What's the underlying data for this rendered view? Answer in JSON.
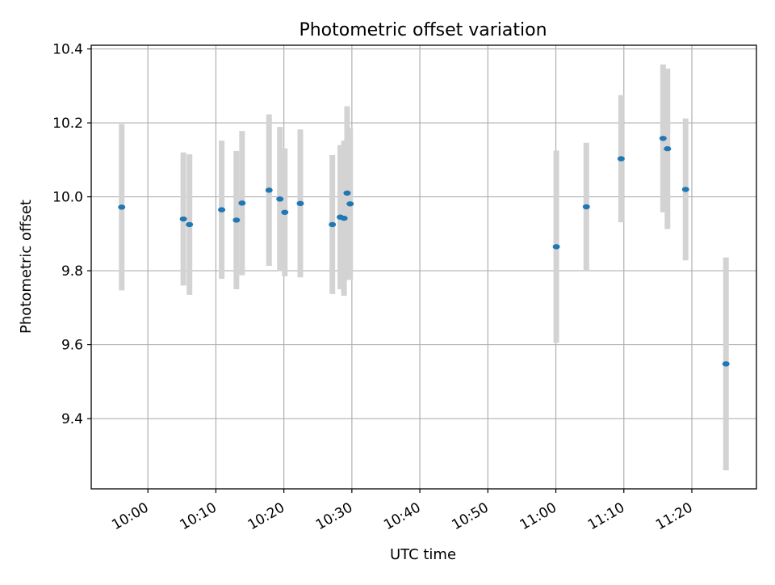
{
  "chart_data": {
    "type": "scatter",
    "title": "Photometric offset variation",
    "xlabel": "UTC time",
    "ylabel": "Photometric offset",
    "grid": true,
    "x_range": [
      "09:51:40",
      "11:29:30"
    ],
    "ylim": [
      9.21,
      10.41
    ],
    "x_ticks": [
      "10:00",
      "10:10",
      "10:20",
      "10:30",
      "10:40",
      "10:50",
      "11:00",
      "11:10",
      "11:20"
    ],
    "y_ticks": [
      "9.4",
      "9.6",
      "9.8",
      "10.0",
      "10.2",
      "10.4"
    ],
    "colors": {
      "point": "#1f77b4",
      "errorbar": "#d3d3d3",
      "grid": "#b0b0b0"
    },
    "points": [
      {
        "x": "09:56:09",
        "y": 9.972,
        "err": 0.225
      },
      {
        "x": "10:05:13",
        "y": 9.94,
        "err": 0.18
      },
      {
        "x": "10:06:07",
        "y": 9.925,
        "err": 0.19
      },
      {
        "x": "10:10:51",
        "y": 9.965,
        "err": 0.187
      },
      {
        "x": "10:13:01",
        "y": 9.937,
        "err": 0.187
      },
      {
        "x": "10:13:51",
        "y": 9.983,
        "err": 0.195
      },
      {
        "x": "10:17:49",
        "y": 10.018,
        "err": 0.205
      },
      {
        "x": "10:19:25",
        "y": 9.994,
        "err": 0.195
      },
      {
        "x": "10:20:08",
        "y": 9.958,
        "err": 0.173
      },
      {
        "x": "10:22:25",
        "y": 9.982,
        "err": 0.2
      },
      {
        "x": "10:27:08",
        "y": 9.925,
        "err": 0.188
      },
      {
        "x": "10:28:18",
        "y": 9.945,
        "err": 0.195
      },
      {
        "x": "10:28:51",
        "y": 9.942,
        "err": 0.21
      },
      {
        "x": "10:29:18",
        "y": 10.01,
        "err": 0.235
      },
      {
        "x": "10:29:45",
        "y": 9.981,
        "err": 0.205
      },
      {
        "x": "11:00:04",
        "y": 9.865,
        "err": 0.26
      },
      {
        "x": "11:04:29",
        "y": 9.973,
        "err": 0.173
      },
      {
        "x": "11:09:36",
        "y": 10.103,
        "err": 0.172
      },
      {
        "x": "11:15:46",
        "y": 10.158,
        "err": 0.2
      },
      {
        "x": "11:16:25",
        "y": 10.13,
        "err": 0.217
      },
      {
        "x": "11:19:05",
        "y": 10.02,
        "err": 0.192
      },
      {
        "x": "11:25:01",
        "y": 9.548,
        "err": 0.288
      }
    ]
  }
}
